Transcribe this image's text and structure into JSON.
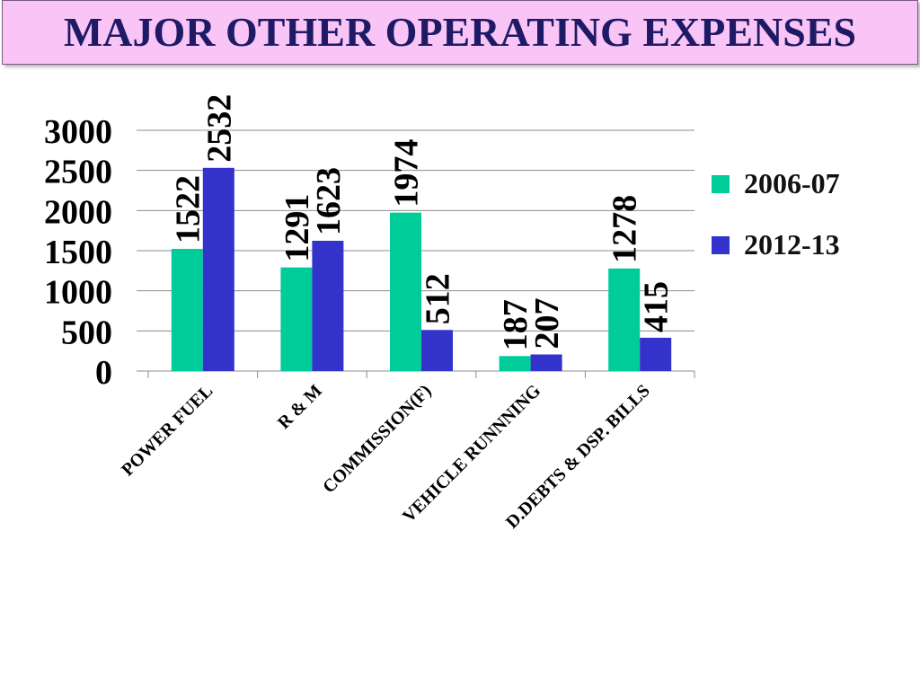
{
  "slide": {
    "title": "MAJOR OTHER OPERATING EXPENSES",
    "title_color": "#1f1a66",
    "banner_color": "#f9c4f6"
  },
  "chart_data": {
    "type": "bar",
    "title": "",
    "xlabel": "",
    "ylabel": "",
    "ylim": [
      0,
      3000
    ],
    "yticks": [
      0,
      500,
      1000,
      1500,
      2000,
      2500,
      3000
    ],
    "grid": true,
    "legend_position": "right",
    "categories": [
      "POWER FUEL",
      "R & M",
      "COMMISSION(F)",
      "VEHICLE RUNNNING",
      "D.DEBTS & DSP. BILLS"
    ],
    "series": [
      {
        "name": "2006-07",
        "color": "#00cc99",
        "values": [
          1522,
          1291,
          1974,
          187,
          1278
        ]
      },
      {
        "name": "2012-13",
        "color": "#3333cc",
        "values": [
          2532,
          1623,
          512,
          207,
          415
        ]
      }
    ]
  }
}
